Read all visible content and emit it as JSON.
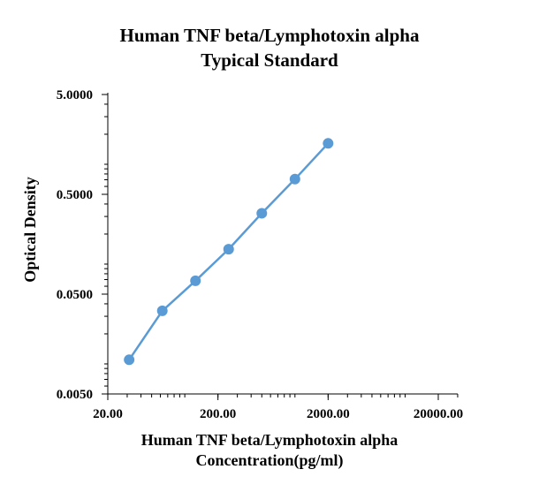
{
  "chart_data": {
    "type": "line",
    "title_lines": [
      "Human TNF beta/Lymphotoxin alpha",
      "Typical Standard"
    ],
    "xlabel_lines": [
      "Human TNF beta/Lymphotoxin alpha",
      "Concentration(pg/ml)"
    ],
    "ylabel": "Optical Density",
    "x_scale": "log",
    "y_scale": "log",
    "xlim": [
      20,
      20000
    ],
    "ylim": [
      0.005,
      5
    ],
    "x_ticks": [
      20,
      200,
      2000,
      20000
    ],
    "x_tick_labels": [
      "20.00",
      "200.00",
      "2000.00",
      "20000.00"
    ],
    "y_ticks": [
      0.005,
      0.05,
      0.5,
      5
    ],
    "y_tick_labels": [
      "0.0050",
      "0.0500",
      "0.5000",
      "5.0000"
    ],
    "grid": false,
    "series": [
      {
        "x": [
          31.25,
          62.5,
          125,
          250,
          500,
          1000,
          2000
        ],
        "y": [
          0.011,
          0.034,
          0.068,
          0.141,
          0.323,
          0.71,
          1.62
        ]
      }
    ],
    "series_color": "#5b9bd5"
  }
}
